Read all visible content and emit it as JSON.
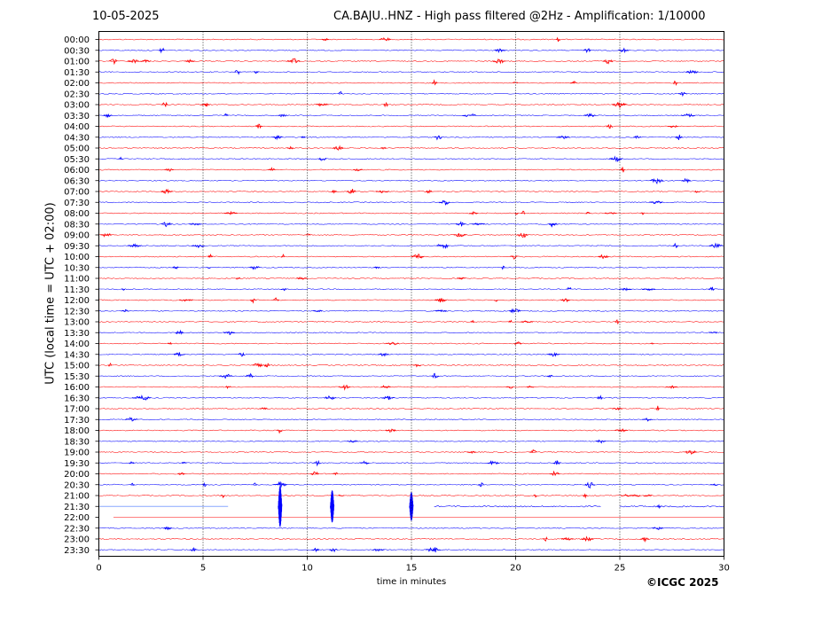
{
  "header": {
    "date": "10-05-2025",
    "title": "CA.BAJU..HNZ - High pass filtered @2Hz - Amplification: 1/10000"
  },
  "axes": {
    "ylabel": "UTC (local time = UTC + 02:00)",
    "xlabel": "time in minutes"
  },
  "footer": {
    "copyright": "©ICGC 2025"
  },
  "colors": {
    "red_trace": "#ff0000",
    "blue_trace": "#0000ff",
    "gridline": "#000000"
  },
  "chart_data": {
    "type": "line",
    "title": "CA.BAJU..HNZ - High pass filtered @2Hz - Amplification: 1/10000",
    "xlabel": "time in minutes",
    "ylabel": "UTC (local time = UTC + 02:00)",
    "xlim": [
      0,
      30
    ],
    "x_ticks": [
      "0",
      "5",
      "10",
      "15",
      "20",
      "25",
      "30"
    ],
    "x_tick_values": [
      0,
      5,
      10,
      15,
      20,
      25,
      30
    ],
    "vertical_gridlines_at": [
      5,
      10,
      15,
      20,
      25
    ],
    "row_labels": [
      "00:00",
      "00:30",
      "01:00",
      "01:30",
      "02:00",
      "02:30",
      "03:00",
      "03:30",
      "04:00",
      "04:30",
      "05:00",
      "05:30",
      "06:00",
      "06:30",
      "07:00",
      "07:30",
      "08:00",
      "08:30",
      "09:00",
      "09:30",
      "10:00",
      "10:30",
      "11:00",
      "11:30",
      "12:00",
      "12:30",
      "13:00",
      "13:30",
      "14:00",
      "14:30",
      "15:00",
      "15:30",
      "16:00",
      "16:30",
      "17:00",
      "17:30",
      "18:00",
      "18:30",
      "19:00",
      "19:30",
      "20:00",
      "20:30",
      "21:00",
      "21:30",
      "22:00",
      "22:30",
      "23:00",
      "23:30"
    ],
    "row_colors": "alternating red (even rows) / blue (odd rows)",
    "events": [
      {
        "row": "21:30",
        "minute": 8.7,
        "label": ""
      },
      {
        "row": "21:30",
        "minute": 11.2,
        "label": ""
      },
      {
        "row": "21:30",
        "minute": 15.0,
        "label": ""
      }
    ]
  }
}
